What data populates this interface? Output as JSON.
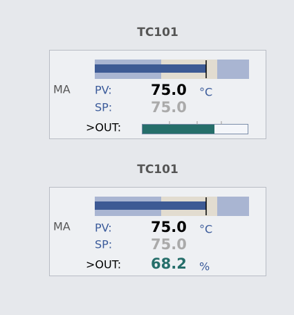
{
  "panels": [
    {
      "title": "TC101",
      "mode": "MA",
      "pv_label": "PV:",
      "pv": "75.0",
      "pv_unit": "°C",
      "sp_label": "SP:",
      "sp": "75.0",
      "out_label": ">OUT:"
    },
    {
      "title": "TC101",
      "mode": "MA",
      "pv_label": "PV:",
      "pv": "75.0",
      "pv_unit": "°C",
      "sp_label": "SP:",
      "sp": "75.0",
      "out_label": ">OUT:",
      "out": "68.2",
      "out_unit": "%"
    }
  ]
}
